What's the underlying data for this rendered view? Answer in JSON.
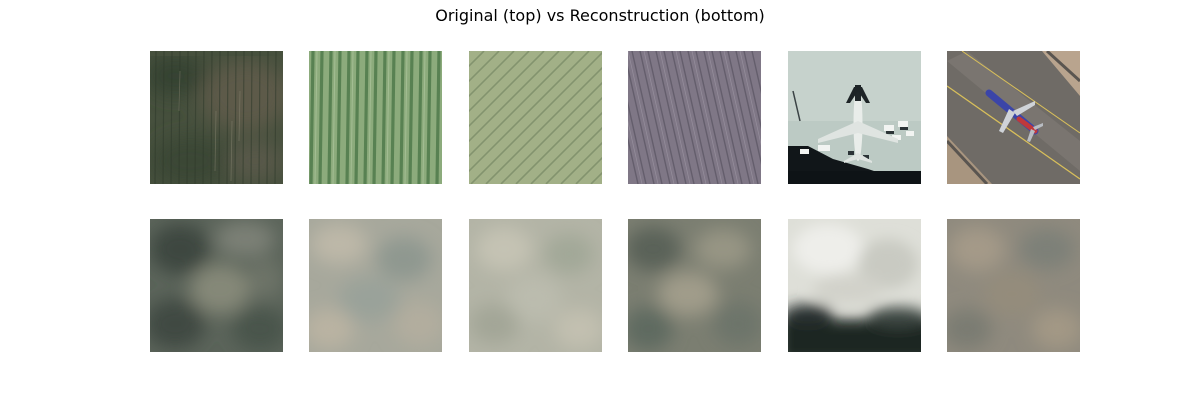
{
  "figure": {
    "title": "Original (top) vs Reconstruction (bottom)"
  },
  "rows": {
    "original": [
      {
        "subject": "field",
        "base": "#46503d"
      },
      {
        "subject": "field",
        "base": "#7fa070"
      },
      {
        "subject": "field",
        "base": "#9aae82"
      },
      {
        "subject": "field",
        "base": "#7d7584"
      },
      {
        "subject": "airplane",
        "base": "#bcc9c2"
      },
      {
        "subject": "airplane",
        "base": "#6e6a66"
      }
    ],
    "reconstruction": [
      {
        "base": "#5a6258"
      },
      {
        "base": "#a4a69a"
      },
      {
        "base": "#b1b2a4"
      },
      {
        "base": "#7a7d70"
      },
      {
        "base": "#dcdcd4"
      },
      {
        "base": "#8f8a7e"
      }
    ]
  }
}
